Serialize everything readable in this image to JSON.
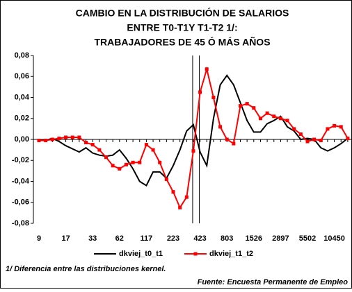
{
  "chart_data": {
    "type": "line",
    "title": [
      "CAMBIO EN LA DISTRIBUCIÓN DE SALARIOS",
      "ENTRE T0-T1Y T1-T2 1/:",
      "TRABAJADORES DE 45 Ó MÁS AÑOS"
    ],
    "categories": [
      "9",
      null,
      null,
      null,
      "17",
      null,
      null,
      null,
      "33",
      null,
      null,
      null,
      "62",
      null,
      null,
      null,
      "117",
      null,
      null,
      null,
      "223",
      null,
      null,
      null,
      "423",
      null,
      null,
      null,
      "803",
      null,
      null,
      null,
      "1526",
      null,
      null,
      null,
      "2897",
      null,
      null,
      null,
      "5502",
      null,
      null,
      null,
      "10450",
      null,
      null
    ],
    "series": [
      {
        "name": "dkviej_t0_t1",
        "color": "#000000",
        "marker": false,
        "values": [
          -0.001,
          -0.001,
          0.001,
          -0.002,
          -0.006,
          -0.009,
          -0.012,
          -0.008,
          -0.013,
          -0.015,
          -0.016,
          -0.015,
          -0.01,
          -0.018,
          -0.028,
          -0.04,
          -0.044,
          -0.031,
          -0.031,
          -0.037,
          -0.025,
          -0.01,
          0.008,
          0.014,
          -0.012,
          -0.025,
          0.02,
          0.052,
          0.061,
          0.052,
          0.035,
          0.018,
          0.007,
          0.007,
          0.015,
          0.018,
          0.022,
          0.012,
          0.008,
          0.0,
          0.001,
          0.0,
          -0.008,
          -0.011,
          -0.008,
          -0.004,
          0.001
        ]
      },
      {
        "name": "dkviej_t1_t2",
        "color": "#ff0000",
        "marker": true,
        "values": [
          -0.001,
          -0.001,
          0.0,
          0.001,
          0.002,
          0.002,
          0.002,
          -0.003,
          -0.005,
          -0.01,
          -0.017,
          -0.025,
          -0.028,
          -0.024,
          -0.022,
          -0.022,
          -0.005,
          -0.01,
          -0.022,
          -0.038,
          -0.05,
          -0.065,
          -0.055,
          -0.011,
          0.045,
          0.067,
          0.04,
          0.012,
          0.0,
          -0.004,
          0.032,
          0.034,
          0.03,
          0.02,
          0.025,
          0.022,
          0.02,
          0.018,
          0.01,
          0.005,
          -0.002,
          0.0,
          -0.001,
          0.01,
          0.013,
          0.012,
          0.001
        ]
      }
    ],
    "ylim": [
      -0.08,
      0.08
    ],
    "yticks": [
      {
        "value": -0.08,
        "label": "-0,08"
      },
      {
        "value": -0.06,
        "label": "-0,06"
      },
      {
        "value": -0.04,
        "label": "-0,04"
      },
      {
        "value": -0.02,
        "label": "-0,02"
      },
      {
        "value": 0,
        "label": "0,00"
      },
      {
        "value": 0.02,
        "label": "0,02"
      },
      {
        "value": 0.04,
        "label": "0,04"
      },
      {
        "value": 0.06,
        "label": "0,06"
      },
      {
        "value": 0.08,
        "label": "0,08"
      }
    ],
    "grid": false,
    "legend": "bottom",
    "note": "1/ Diferencia entre las distribuciones kernel.",
    "source": "Fuente: Encuesta Permanente de Empleo"
  }
}
